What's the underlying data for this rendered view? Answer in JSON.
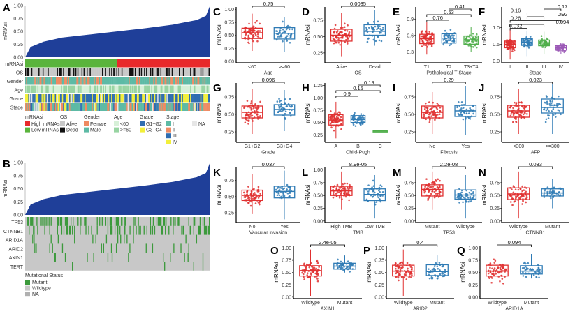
{
  "colors": {
    "area": "#1f3f99",
    "high": "#e8292b",
    "low": "#5ab43c",
    "alive": "#c8c8c8",
    "dead": "#111111",
    "female": "#ef8a62",
    "male": "#5dbaa5",
    "lt60": "#d7f0d8",
    "ge60": "#98d4a2",
    "g12": "#2f6db0",
    "g34": "#f2ef3a",
    "stageI": "#5dbaa5",
    "stageII": "#ef8a62",
    "stageIII": "#2f6db0",
    "stageIV": "#f2ef3a",
    "na": "#e6e6e6",
    "mutant": "#3c9a3c",
    "wildtype": "#c8c8c8",
    "mutNA": "#b0b0b0",
    "red": "#e03030",
    "blue": "#2f7bb5",
    "green": "#4fae4a",
    "purple": "#9b59b6"
  },
  "panelA": {
    "letter": "A",
    "ylabel": "mRNAsi",
    "yticks": [
      "0.00",
      "0.25",
      "0.50",
      "0.75",
      "1.00"
    ],
    "curve": [
      [
        0,
        0
      ],
      [
        0.03,
        0.2
      ],
      [
        0.1,
        0.3
      ],
      [
        0.2,
        0.38
      ],
      [
        0.35,
        0.44
      ],
      [
        0.5,
        0.5
      ],
      [
        0.65,
        0.56
      ],
      [
        0.8,
        0.63
      ],
      [
        0.93,
        0.72
      ],
      [
        0.98,
        0.8
      ],
      [
        1,
        0.98
      ]
    ],
    "rows": [
      "mRNAsi",
      "OS",
      "Gender",
      "Age",
      "Grade",
      "Stage"
    ],
    "legend": [
      {
        "title": "mRNAsi",
        "items": [
          {
            "label": "High mRNAsi",
            "color": "high"
          },
          {
            "label": "Low mRNAsi",
            "color": "low"
          }
        ]
      },
      {
        "title": "OS",
        "items": [
          {
            "label": "Alive",
            "color": "alive"
          },
          {
            "label": "Dead",
            "color": "dead"
          }
        ]
      },
      {
        "title": "Gender",
        "items": [
          {
            "label": "Female",
            "color": "female"
          },
          {
            "label": "Male",
            "color": "male"
          }
        ]
      },
      {
        "title": "Age",
        "items": [
          {
            "label": "<60",
            "color": "lt60"
          },
          {
            "label": ">=60",
            "color": "ge60"
          }
        ]
      },
      {
        "title": "Grade",
        "items": [
          {
            "label": "G1+G2",
            "color": "g12"
          },
          {
            "label": "G3+G4",
            "color": "g34"
          }
        ]
      },
      {
        "title": "Stage",
        "items": [
          {
            "label": "I",
            "color": "stageI"
          },
          {
            "label": "II",
            "color": "stageII"
          },
          {
            "label": "III",
            "color": "stageIII"
          },
          {
            "label": "IV",
            "color": "stageIV"
          }
        ]
      },
      {
        "title": "",
        "items": [
          {
            "label": "NA",
            "color": "na"
          }
        ]
      }
    ]
  },
  "panelB": {
    "letter": "B",
    "ylabel": "mRNAsi",
    "yticks": [
      "0.00",
      "0.25",
      "0.50",
      "0.75",
      "1.00"
    ],
    "rows": [
      "TP53",
      "CTNNB1",
      "ARID1A",
      "ARID2",
      "AXIN1",
      "TERT"
    ],
    "mut_rates": [
      0.28,
      0.25,
      0.1,
      0.05,
      0.07,
      0.01
    ],
    "legend_title": "Mutational Status",
    "legend": [
      {
        "label": "Mutant",
        "color": "mutant"
      },
      {
        "label": "Wildtype",
        "color": "wildtype"
      },
      {
        "label": "NA",
        "color": "mutNA"
      }
    ]
  },
  "chart_data": [
    {
      "type": "box",
      "letter": "C",
      "ylabel": "mRNAsi",
      "xlabel": "Age",
      "ylim": [
        -0.03,
        1.05
      ],
      "yticks": [
        0,
        0.25,
        0.5,
        0.75,
        1
      ],
      "ytick_labels": [
        "0.00",
        "0.25",
        "0.50",
        "0.75",
        "1.00"
      ],
      "groups": [
        {
          "name": "<60",
          "color": "red",
          "q1": 0.44,
          "median": 0.55,
          "q3": 0.64,
          "lo": 0.2,
          "hi": 0.92
        },
        {
          "name": ">=60",
          "color": "blue",
          "q1": 0.43,
          "median": 0.54,
          "q3": 0.65,
          "lo": 0.18,
          "hi": 0.85
        }
      ],
      "comparisons": [
        {
          "a": 0,
          "b": 1,
          "p": "0.75"
        }
      ]
    },
    {
      "type": "box",
      "letter": "D",
      "ylabel": "mRNAsi",
      "xlabel": "OS",
      "ylim": [
        0.1,
        0.95
      ],
      "yticks": [
        0.25,
        0.5,
        0.75
      ],
      "ytick_labels": [
        "0.25",
        "0.50",
        "0.75"
      ],
      "groups": [
        {
          "name": "Alive",
          "color": "red",
          "q1": 0.43,
          "median": 0.52,
          "q3": 0.61,
          "lo": 0.2,
          "hi": 0.86
        },
        {
          "name": "Dead",
          "color": "blue",
          "q1": 0.52,
          "median": 0.58,
          "q3": 0.68,
          "lo": 0.36,
          "hi": 0.9
        }
      ],
      "comparisons": [
        {
          "a": 0,
          "b": 1,
          "p": "0.0035"
        }
      ]
    },
    {
      "type": "box",
      "letter": "E",
      "ylabel": "mRNAsi",
      "xlabel": "Pathological T Stage",
      "ylim": [
        0.1,
        1.12
      ],
      "yticks": [
        0.3,
        0.6,
        0.9
      ],
      "ytick_labels": [
        "0.3",
        "0.6",
        "0.9"
      ],
      "groups": [
        {
          "name": "T1",
          "color": "red",
          "q1": 0.45,
          "median": 0.54,
          "q3": 0.62,
          "lo": 0.25,
          "hi": 0.85
        },
        {
          "name": "T2",
          "color": "blue",
          "q1": 0.46,
          "median": 0.55,
          "q3": 0.63,
          "lo": 0.22,
          "hi": 0.9
        },
        {
          "name": "T3+T4",
          "color": "green",
          "q1": 0.44,
          "median": 0.52,
          "q3": 0.59,
          "lo": 0.3,
          "hi": 0.75
        }
      ],
      "comparisons": [
        {
          "a": 0,
          "b": 1,
          "p": "0.76"
        },
        {
          "a": 0,
          "b": 2,
          "p": "0.53"
        },
        {
          "a": 1,
          "b": 2,
          "p": "0.41"
        }
      ]
    },
    {
      "type": "box",
      "letter": "F",
      "ylabel": "mRNAsi",
      "xlabel": "Stage",
      "ylim": [
        -0.05,
        1.62
      ],
      "yticks": [
        0,
        0.5,
        1
      ],
      "ytick_labels": [
        "0.0",
        "0.5",
        "1.0"
      ],
      "groups": [
        {
          "name": "I",
          "color": "red",
          "q1": 0.4,
          "median": 0.5,
          "q3": 0.6,
          "lo": 0.05,
          "hi": 0.95
        },
        {
          "name": "II",
          "color": "blue",
          "q1": 0.47,
          "median": 0.57,
          "q3": 0.67,
          "lo": 0.15,
          "hi": 0.9
        },
        {
          "name": "III",
          "color": "green",
          "q1": 0.46,
          "median": 0.55,
          "q3": 0.63,
          "lo": 0.2,
          "hi": 0.88
        },
        {
          "name": "IV",
          "color": "purple",
          "q1": 0.33,
          "median": 0.4,
          "q3": 0.46,
          "lo": 0.2,
          "hi": 0.55
        }
      ],
      "comparisons": [
        {
          "a": 0,
          "b": 1,
          "p": "0.032"
        },
        {
          "a": 0,
          "b": 2,
          "p": "0.094"
        },
        {
          "a": 0,
          "b": 3,
          "p": "0.26"
        },
        {
          "a": 1,
          "b": 2,
          "p": "0.92"
        },
        {
          "a": 1,
          "b": 3,
          "p": "0.16"
        },
        {
          "a": 2,
          "b": 3,
          "p": "0.17"
        }
      ]
    },
    {
      "type": "box",
      "letter": "G",
      "ylabel": "mRNAsi",
      "xlabel": "Grade",
      "ylim": [
        0.1,
        0.95
      ],
      "yticks": [
        0.25,
        0.5,
        0.75
      ],
      "ytick_labels": [
        "0.25",
        "0.50",
        "0.75"
      ],
      "groups": [
        {
          "name": "G1+G2",
          "color": "red",
          "q1": 0.45,
          "median": 0.53,
          "q3": 0.62,
          "lo": 0.22,
          "hi": 0.86
        },
        {
          "name": "G3+G4",
          "color": "blue",
          "q1": 0.49,
          "median": 0.57,
          "q3": 0.64,
          "lo": 0.26,
          "hi": 0.85
        }
      ],
      "comparisons": [
        {
          "a": 0,
          "b": 1,
          "p": "0.096"
        }
      ]
    },
    {
      "type": "box",
      "letter": "H",
      "ylabel": "mRNAsi",
      "xlabel": "Child-Pugh",
      "ylim": [
        0.1,
        1.3
      ],
      "yticks": [
        0.25,
        0.5,
        0.75,
        1,
        1.25
      ],
      "ytick_labels": [
        "0.25",
        "0.50",
        "0.75",
        "1.00",
        "1.25"
      ],
      "groups": [
        {
          "name": "A",
          "color": "red",
          "q1": 0.45,
          "median": 0.55,
          "q3": 0.66,
          "lo": 0.18,
          "hi": 0.92
        },
        {
          "name": "B",
          "color": "blue",
          "q1": 0.5,
          "median": 0.56,
          "q3": 0.64,
          "lo": 0.4,
          "hi": 0.76
        },
        {
          "name": "C",
          "color": "green",
          "q1": 0.33,
          "median": 0.33,
          "q3": 0.33,
          "lo": 0.33,
          "hi": 0.33
        }
      ],
      "comparisons": [
        {
          "a": 0,
          "b": 1,
          "p": "0.9"
        },
        {
          "a": 0,
          "b": 2,
          "p": "0.15"
        },
        {
          "a": 1,
          "b": 2,
          "p": "0.19"
        }
      ]
    },
    {
      "type": "box",
      "letter": "I",
      "ylabel": "mRNAsi",
      "xlabel": "Fibrosis",
      "ylim": [
        0.1,
        0.95
      ],
      "yticks": [
        0.25,
        0.5,
        0.75
      ],
      "ytick_labels": [
        "0.25",
        "0.50",
        "0.75"
      ],
      "groups": [
        {
          "name": "No",
          "color": "red",
          "q1": 0.45,
          "median": 0.53,
          "q3": 0.62,
          "lo": 0.22,
          "hi": 0.82
        },
        {
          "name": "Yes",
          "color": "blue",
          "q1": 0.47,
          "median": 0.55,
          "q3": 0.63,
          "lo": 0.2,
          "hi": 0.9
        }
      ],
      "comparisons": [
        {
          "a": 0,
          "b": 1,
          "p": "0.29"
        }
      ]
    },
    {
      "type": "box",
      "letter": "J",
      "ylabel": "mRNAsi",
      "xlabel": "AFP",
      "ylim": [
        0.1,
        0.95
      ],
      "yticks": [
        0.25,
        0.5,
        0.75
      ],
      "ytick_labels": [
        "0.25",
        "0.50",
        "0.75"
      ],
      "groups": [
        {
          "name": "<300",
          "color": "red",
          "q1": 0.46,
          "median": 0.55,
          "q3": 0.63,
          "lo": 0.22,
          "hi": 0.86
        },
        {
          "name": ">=300",
          "color": "blue",
          "q1": 0.52,
          "median": 0.6,
          "q3": 0.72,
          "lo": 0.22,
          "hi": 0.93
        }
      ],
      "comparisons": [
        {
          "a": 0,
          "b": 1,
          "p": "0.023"
        }
      ]
    },
    {
      "type": "box",
      "letter": "K",
      "ylabel": "mRNAsi",
      "xlabel": "Vascular invasion",
      "ylim": [
        0.1,
        0.95
      ],
      "yticks": [
        0.25,
        0.5,
        0.75
      ],
      "ytick_labels": [
        "0.25",
        "0.50",
        "0.75"
      ],
      "groups": [
        {
          "name": "No",
          "color": "red",
          "q1": 0.44,
          "median": 0.52,
          "q3": 0.6,
          "lo": 0.23,
          "hi": 0.85
        },
        {
          "name": "Yes",
          "color": "blue",
          "q1": 0.48,
          "median": 0.58,
          "q3": 0.66,
          "lo": 0.15,
          "hi": 0.9
        }
      ],
      "comparisons": [
        {
          "a": 0,
          "b": 1,
          "p": "0.037"
        }
      ]
    },
    {
      "type": "box",
      "letter": "L",
      "ylabel": "mRNAsi",
      "xlabel": "TMB",
      "ylim": [
        -0.03,
        1.05
      ],
      "yticks": [
        0,
        0.25,
        0.5,
        0.75,
        1
      ],
      "ytick_labels": [
        "0.00",
        "0.25",
        "0.50",
        "0.75",
        "1.00"
      ],
      "groups": [
        {
          "name": "High TMB",
          "color": "red",
          "q1": 0.5,
          "median": 0.59,
          "q3": 0.68,
          "lo": 0.22,
          "hi": 0.97
        },
        {
          "name": "Low TMB",
          "color": "blue",
          "q1": 0.4,
          "median": 0.52,
          "q3": 0.63,
          "lo": 0.05,
          "hi": 0.9
        }
      ],
      "comparisons": [
        {
          "a": 0,
          "b": 1,
          "p": "8.9e-05"
        }
      ]
    },
    {
      "type": "box",
      "letter": "M",
      "ylabel": "mRNAsi",
      "xlabel": "TP53",
      "ylim": [
        -0.03,
        1.05
      ],
      "yticks": [
        0,
        0.25,
        0.5,
        0.75
      ],
      "ytick_labels": [
        "0.00",
        "0.25",
        "0.50",
        "0.75"
      ],
      "groups": [
        {
          "name": "Mutant",
          "color": "red",
          "q1": 0.49,
          "median": 0.62,
          "q3": 0.71,
          "lo": 0.22,
          "hi": 0.97
        },
        {
          "name": "Wildtype",
          "color": "blue",
          "q1": 0.43,
          "median": 0.51,
          "q3": 0.61,
          "lo": 0.05,
          "hi": 0.9
        }
      ],
      "comparisons": [
        {
          "a": 0,
          "b": 1,
          "p": "2.2e-08"
        }
      ]
    },
    {
      "type": "box",
      "letter": "N",
      "ylabel": "mRNAsi",
      "xlabel": "CTNNB1",
      "ylim": [
        -0.03,
        1.05
      ],
      "yticks": [
        0,
        0.25,
        0.5,
        0.75
      ],
      "ytick_labels": [
        "0.00",
        "0.25",
        "0.50",
        "0.75"
      ],
      "groups": [
        {
          "name": "Wildtype",
          "color": "red",
          "q1": 0.42,
          "median": 0.53,
          "q3": 0.65,
          "lo": 0.05,
          "hi": 0.97
        },
        {
          "name": "Mutant",
          "color": "blue",
          "q1": 0.49,
          "median": 0.55,
          "q3": 0.63,
          "lo": 0.25,
          "hi": 0.83
        }
      ],
      "comparisons": [
        {
          "a": 0,
          "b": 1,
          "p": "0.033"
        }
      ]
    },
    {
      "type": "box",
      "letter": "O",
      "ylabel": "mRNAsi",
      "xlabel": "AXIN1",
      "ylim": [
        -0.03,
        1.05
      ],
      "yticks": [
        0,
        0.25,
        0.5,
        0.75,
        1
      ],
      "ytick_labels": [
        "0.00",
        "0.25",
        "0.50",
        "0.75",
        "1.00"
      ],
      "groups": [
        {
          "name": "Wildtype",
          "color": "red",
          "q1": 0.43,
          "median": 0.54,
          "q3": 0.64,
          "lo": 0.02,
          "hi": 0.97
        },
        {
          "name": "Mutant",
          "color": "blue",
          "q1": 0.57,
          "median": 0.63,
          "q3": 0.69,
          "lo": 0.5,
          "hi": 0.85
        }
      ],
      "comparisons": [
        {
          "a": 0,
          "b": 1,
          "p": "2.4e-05"
        }
      ]
    },
    {
      "type": "box",
      "letter": "P",
      "ylabel": "mRNAsi",
      "xlabel": "ARID2",
      "ylim": [
        -0.03,
        1.05
      ],
      "yticks": [
        0,
        0.25,
        0.5,
        0.75,
        1
      ],
      "ytick_labels": [
        "0.00",
        "0.25",
        "0.50",
        "0.75",
        "1.00"
      ],
      "groups": [
        {
          "name": "Wildtype",
          "color": "red",
          "q1": 0.43,
          "median": 0.53,
          "q3": 0.65,
          "lo": 0.02,
          "hi": 0.97
        },
        {
          "name": "Mutant",
          "color": "blue",
          "q1": 0.44,
          "median": 0.52,
          "q3": 0.66,
          "lo": 0.38,
          "hi": 0.85
        }
      ],
      "comparisons": [
        {
          "a": 0,
          "b": 1,
          "p": "0.4"
        }
      ]
    },
    {
      "type": "box",
      "letter": "Q",
      "ylabel": "mRNAsi",
      "xlabel": "ARID1A",
      "ylim": [
        -0.03,
        1.05
      ],
      "yticks": [
        0,
        0.25,
        0.5,
        0.75,
        1
      ],
      "ytick_labels": [
        "0.00",
        "0.25",
        "0.50",
        "0.75",
        "1.00"
      ],
      "groups": [
        {
          "name": "Wildtype",
          "color": "red",
          "q1": 0.43,
          "median": 0.53,
          "q3": 0.65,
          "lo": 0.02,
          "hi": 0.97
        },
        {
          "name": "Mutant",
          "color": "blue",
          "q1": 0.47,
          "median": 0.53,
          "q3": 0.64,
          "lo": 0.38,
          "hi": 0.88
        }
      ],
      "comparisons": [
        {
          "a": 0,
          "b": 1,
          "p": "0.094"
        }
      ]
    }
  ]
}
